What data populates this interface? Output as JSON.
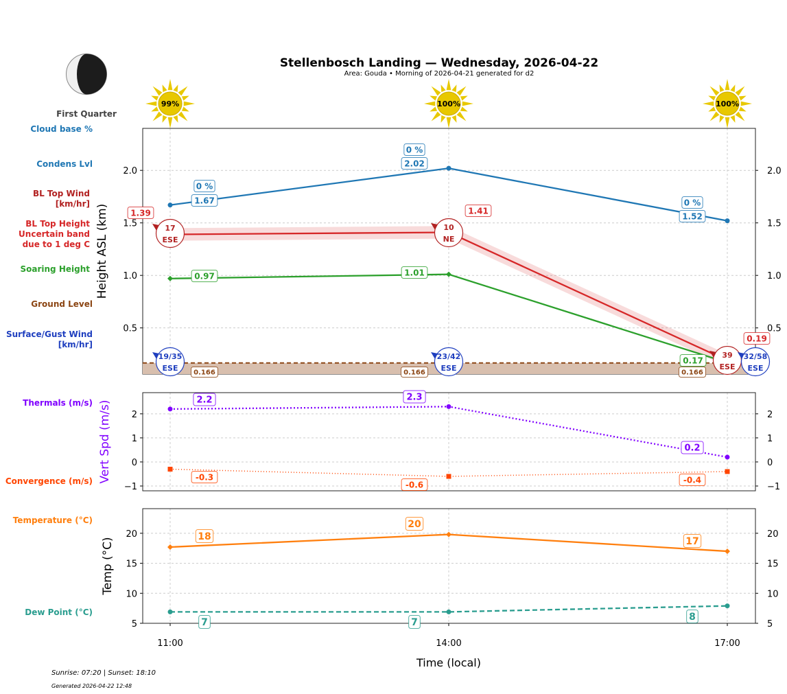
{
  "title": "Stellenbosch Landing — Wednesday, 2026-04-22",
  "subtitle": "Area: Gouda • Morning of 2026-04-21 generated for d2",
  "moon": {
    "phase": "First Quarter",
    "fraction_lit": 0.5
  },
  "footer": {
    "sun": "Sunrise: 07:20 | Sunset: 18:10",
    "generated": "Generated 2026-04-22 12:48"
  },
  "colors": {
    "cloud": "#1f77b4",
    "bl": "#d62728",
    "soar": "#2ca02c",
    "ground": "#8b4513",
    "wind": "#1f3fbf",
    "thermal": "#8000ff",
    "conv": "#ff4500",
    "temp": "#ff7f0e",
    "dew": "#2a9d8f"
  },
  "chart_data": [
    {
      "type": "line",
      "xlabel": "",
      "ylabel": "Height ASL (km)",
      "x": [
        "11:00",
        "14:00",
        "17:00"
      ],
      "ylim": [
        0.06,
        2.4
      ],
      "yticks": [
        0.5,
        1.0,
        1.5,
        2.0
      ],
      "ytick_labels": [
        "0.5",
        "1.0",
        "1.5",
        "2.0"
      ],
      "grid": true,
      "sun_percent": [
        "99%",
        "100%",
        "100%"
      ],
      "row_labels": {
        "cloud_pct": "Cloud base %",
        "condens": "Condens Lvl",
        "bl_wind": "BL Top Wind\n[km/hr]",
        "bl_height": "BL Top Height\nUncertain band\ndue to 1 deg C",
        "soar": "Soaring Height",
        "ground": "Ground Level",
        "surface": "Surface/Gust Wind\n[km/hr]"
      },
      "series": [
        {
          "key": "cloud",
          "values": [
            1.67,
            2.02,
            1.52
          ],
          "labels": [
            "1.67",
            "2.02",
            "1.52"
          ],
          "pct_labels": [
            "0 %",
            "0 %",
            "0 %"
          ]
        },
        {
          "key": "bl",
          "values": [
            1.39,
            1.41,
            0.19
          ],
          "band_low": [
            1.33,
            1.35,
            0.13
          ],
          "band_high": [
            1.45,
            1.47,
            0.25
          ],
          "labels": [
            "1.39",
            "1.41",
            "0.19"
          ]
        },
        {
          "key": "soar",
          "values": [
            0.97,
            1.01,
            0.17
          ],
          "labels": [
            "0.97",
            "1.01",
            "0.17"
          ]
        },
        {
          "key": "ground",
          "values": [
            0.166,
            0.166,
            0.166
          ],
          "labels": [
            "0.166",
            "0.166",
            "0.166"
          ]
        }
      ],
      "bl_wind": [
        {
          "speed": "17",
          "dir": "ESE"
        },
        {
          "speed": "10",
          "dir": "NE"
        },
        {
          "speed": "39",
          "dir": "ESE"
        }
      ],
      "surface_wind": [
        {
          "speed": "19/35",
          "dir": "ESE"
        },
        {
          "speed": "23/42",
          "dir": "ESE"
        },
        {
          "speed": "32/58",
          "dir": "ESE"
        }
      ]
    },
    {
      "type": "line",
      "ylabel": "Vert Spd (m/s)",
      "x": [
        "11:00",
        "14:00",
        "17:00"
      ],
      "ylim": [
        -1.2,
        2.88
      ],
      "yticks": [
        -1,
        0,
        1,
        2
      ],
      "ytick_labels": [
        "−1",
        "0",
        "1",
        "2"
      ],
      "grid": true,
      "row_labels": {
        "thermal": "Thermals (m/s)",
        "conv": "Convergence (m/s)"
      },
      "series": [
        {
          "key": "thermal",
          "values": [
            2.2,
            2.3,
            0.2
          ],
          "labels": [
            "2.2",
            "2.3",
            "0.2"
          ]
        },
        {
          "key": "conv",
          "values": [
            -0.3,
            -0.6,
            -0.4
          ],
          "labels": [
            "-0.3",
            "-0.6",
            "-0.4"
          ]
        }
      ]
    },
    {
      "type": "line",
      "ylabel": "Temp (°C)",
      "xlabel": "Time (local)",
      "x": [
        "11:00",
        "14:00",
        "17:00"
      ],
      "ylim": [
        5,
        24.1
      ],
      "yticks": [
        5,
        10,
        15,
        20
      ],
      "ytick_labels": [
        "5",
        "10",
        "15",
        "20"
      ],
      "grid": true,
      "row_labels": {
        "temp": "Temperature (°C)",
        "dew": "Dew Point (°C)"
      },
      "series": [
        {
          "key": "temp",
          "values": [
            17.7,
            19.8,
            17.0
          ],
          "labels": [
            "18",
            "20",
            "17"
          ]
        },
        {
          "key": "dew",
          "values": [
            6.9,
            6.9,
            7.9
          ],
          "labels": [
            "7",
            "7",
            "8"
          ]
        }
      ]
    }
  ]
}
